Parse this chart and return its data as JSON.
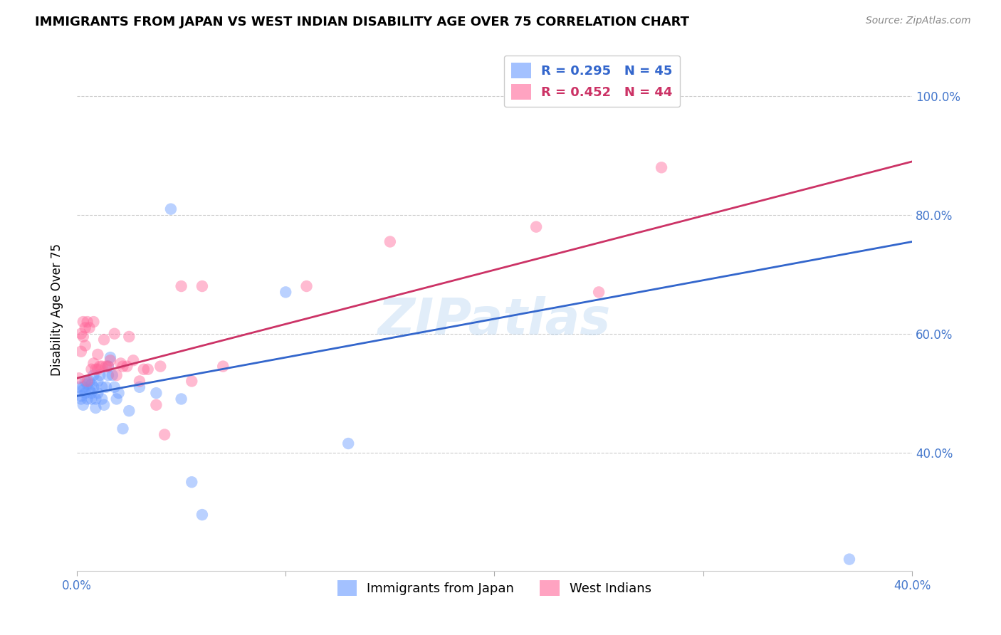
{
  "title": "IMMIGRANTS FROM JAPAN VS WEST INDIAN DISABILITY AGE OVER 75 CORRELATION CHART",
  "source": "Source: ZipAtlas.com",
  "ylabel": "Disability Age Over 75",
  "xlabel_japan": "Immigrants from Japan",
  "xlabel_westindian": "West Indians",
  "watermark": "ZIPatlas",
  "japan_R": 0.295,
  "japan_N": 45,
  "westindian_R": 0.452,
  "westindian_N": 44,
  "xlim": [
    0.0,
    0.4
  ],
  "ylim": [
    0.2,
    1.08
  ],
  "xtick_vals": [
    0.0,
    0.1,
    0.2,
    0.3,
    0.4
  ],
  "ytick_vals": [
    0.4,
    0.6,
    0.8,
    1.0
  ],
  "japan_color": "#6699ff",
  "westindian_color": "#ff6699",
  "japan_line_color": "#3366cc",
  "westindian_line_color": "#cc3366",
  "japan_x": [
    0.001,
    0.002,
    0.002,
    0.003,
    0.003,
    0.003,
    0.004,
    0.004,
    0.005,
    0.005,
    0.006,
    0.006,
    0.007,
    0.007,
    0.007,
    0.008,
    0.008,
    0.009,
    0.009,
    0.01,
    0.01,
    0.011,
    0.012,
    0.012,
    0.013,
    0.014,
    0.015,
    0.015,
    0.016,
    0.017,
    0.018,
    0.019,
    0.02,
    0.022,
    0.025,
    0.03,
    0.038,
    0.045,
    0.05,
    0.055,
    0.06,
    0.1,
    0.13,
    0.27,
    0.37
  ],
  "japan_y": [
    0.51,
    0.495,
    0.49,
    0.505,
    0.51,
    0.48,
    0.52,
    0.5,
    0.515,
    0.49,
    0.505,
    0.52,
    0.5,
    0.515,
    0.49,
    0.53,
    0.51,
    0.49,
    0.475,
    0.5,
    0.52,
    0.53,
    0.51,
    0.49,
    0.48,
    0.51,
    0.53,
    0.545,
    0.56,
    0.53,
    0.51,
    0.49,
    0.5,
    0.44,
    0.47,
    0.51,
    0.5,
    0.81,
    0.49,
    0.35,
    0.295,
    0.67,
    0.415,
    1.0,
    0.22
  ],
  "westindian_x": [
    0.001,
    0.002,
    0.002,
    0.003,
    0.003,
    0.004,
    0.004,
    0.005,
    0.005,
    0.006,
    0.007,
    0.008,
    0.008,
    0.009,
    0.01,
    0.01,
    0.011,
    0.012,
    0.013,
    0.014,
    0.015,
    0.016,
    0.018,
    0.019,
    0.021,
    0.022,
    0.024,
    0.025,
    0.027,
    0.03,
    0.032,
    0.034,
    0.038,
    0.04,
    0.042,
    0.05,
    0.055,
    0.06,
    0.07,
    0.11,
    0.15,
    0.22,
    0.25,
    0.28
  ],
  "westindian_y": [
    0.525,
    0.6,
    0.57,
    0.595,
    0.62,
    0.61,
    0.58,
    0.62,
    0.52,
    0.61,
    0.54,
    0.55,
    0.62,
    0.54,
    0.54,
    0.565,
    0.545,
    0.545,
    0.59,
    0.545,
    0.545,
    0.555,
    0.6,
    0.53,
    0.55,
    0.545,
    0.545,
    0.595,
    0.555,
    0.52,
    0.54,
    0.54,
    0.48,
    0.545,
    0.43,
    0.68,
    0.52,
    0.68,
    0.545,
    0.68,
    0.755,
    0.78,
    0.67,
    0.88
  ],
  "japan_line_x0": 0.0,
  "japan_line_y0": 0.495,
  "japan_line_x1": 0.4,
  "japan_line_y1": 0.755,
  "wi_line_x0": 0.0,
  "wi_line_y0": 0.525,
  "wi_line_x1": 0.4,
  "wi_line_y1": 0.89
}
